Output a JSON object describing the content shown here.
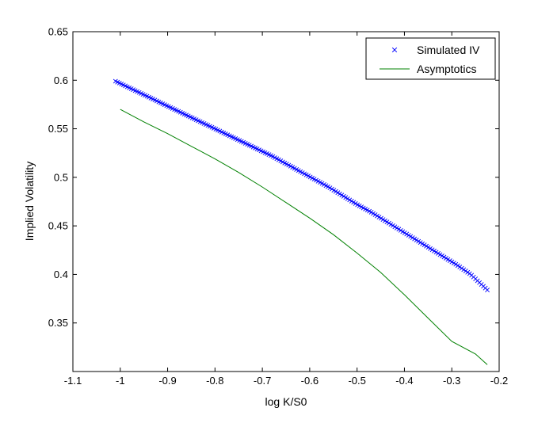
{
  "chart_data": {
    "type": "line",
    "title": "",
    "xlabel": "log K/S0",
    "ylabel": "Implied Volatility",
    "xlim": [
      -1.1,
      -0.2
    ],
    "ylim": [
      0.3,
      0.65
    ],
    "xticks": [
      -1.1,
      -1.0,
      -0.9,
      -0.8,
      -0.7,
      -0.6,
      -0.5,
      -0.4,
      -0.3,
      -0.2
    ],
    "xtick_labels": [
      "-1.1",
      "-1",
      "-0.9",
      "-0.8",
      "-0.7",
      "-0.6",
      "-0.5",
      "-0.4",
      "-0.3",
      "-0.2"
    ],
    "yticks": [
      0.35,
      0.4,
      0.45,
      0.5,
      0.55,
      0.6,
      0.65
    ],
    "ytick_labels": [
      "0.35",
      "0.4",
      "0.45",
      "0.5",
      "0.55",
      "0.6",
      "0.65"
    ],
    "grid": false,
    "legend_position": "top-right",
    "series": [
      {
        "name": "Simulated IV",
        "style": "markers",
        "marker": "x",
        "color": "#0000ff",
        "x": [
          -1.01,
          -0.98,
          -0.95,
          -0.92,
          -0.89,
          -0.86,
          -0.83,
          -0.8,
          -0.77,
          -0.74,
          -0.71,
          -0.68,
          -0.65,
          -0.62,
          -0.59,
          -0.56,
          -0.53,
          -0.5,
          -0.47,
          -0.44,
          -0.41,
          -0.38,
          -0.35,
          -0.32,
          -0.29,
          -0.26,
          -0.225
        ],
        "y": [
          0.599,
          0.592,
          0.585,
          0.578,
          0.571,
          0.564,
          0.557,
          0.55,
          0.543,
          0.536,
          0.529,
          0.522,
          0.514,
          0.506,
          0.498,
          0.49,
          0.481,
          0.472,
          0.464,
          0.455,
          0.446,
          0.437,
          0.428,
          0.419,
          0.41,
          0.4,
          0.384
        ]
      },
      {
        "name": "Asymptotics",
        "style": "line",
        "color": "#008000",
        "x": [
          -1.0,
          -0.95,
          -0.9,
          -0.85,
          -0.8,
          -0.75,
          -0.7,
          -0.65,
          -0.6,
          -0.55,
          -0.5,
          -0.45,
          -0.4,
          -0.35,
          -0.3,
          -0.25,
          -0.225
        ],
        "y": [
          0.57,
          0.557,
          0.545,
          0.532,
          0.519,
          0.505,
          0.49,
          0.474,
          0.458,
          0.441,
          0.422,
          0.402,
          0.379,
          0.355,
          0.331,
          0.318,
          0.307
        ]
      }
    ]
  }
}
